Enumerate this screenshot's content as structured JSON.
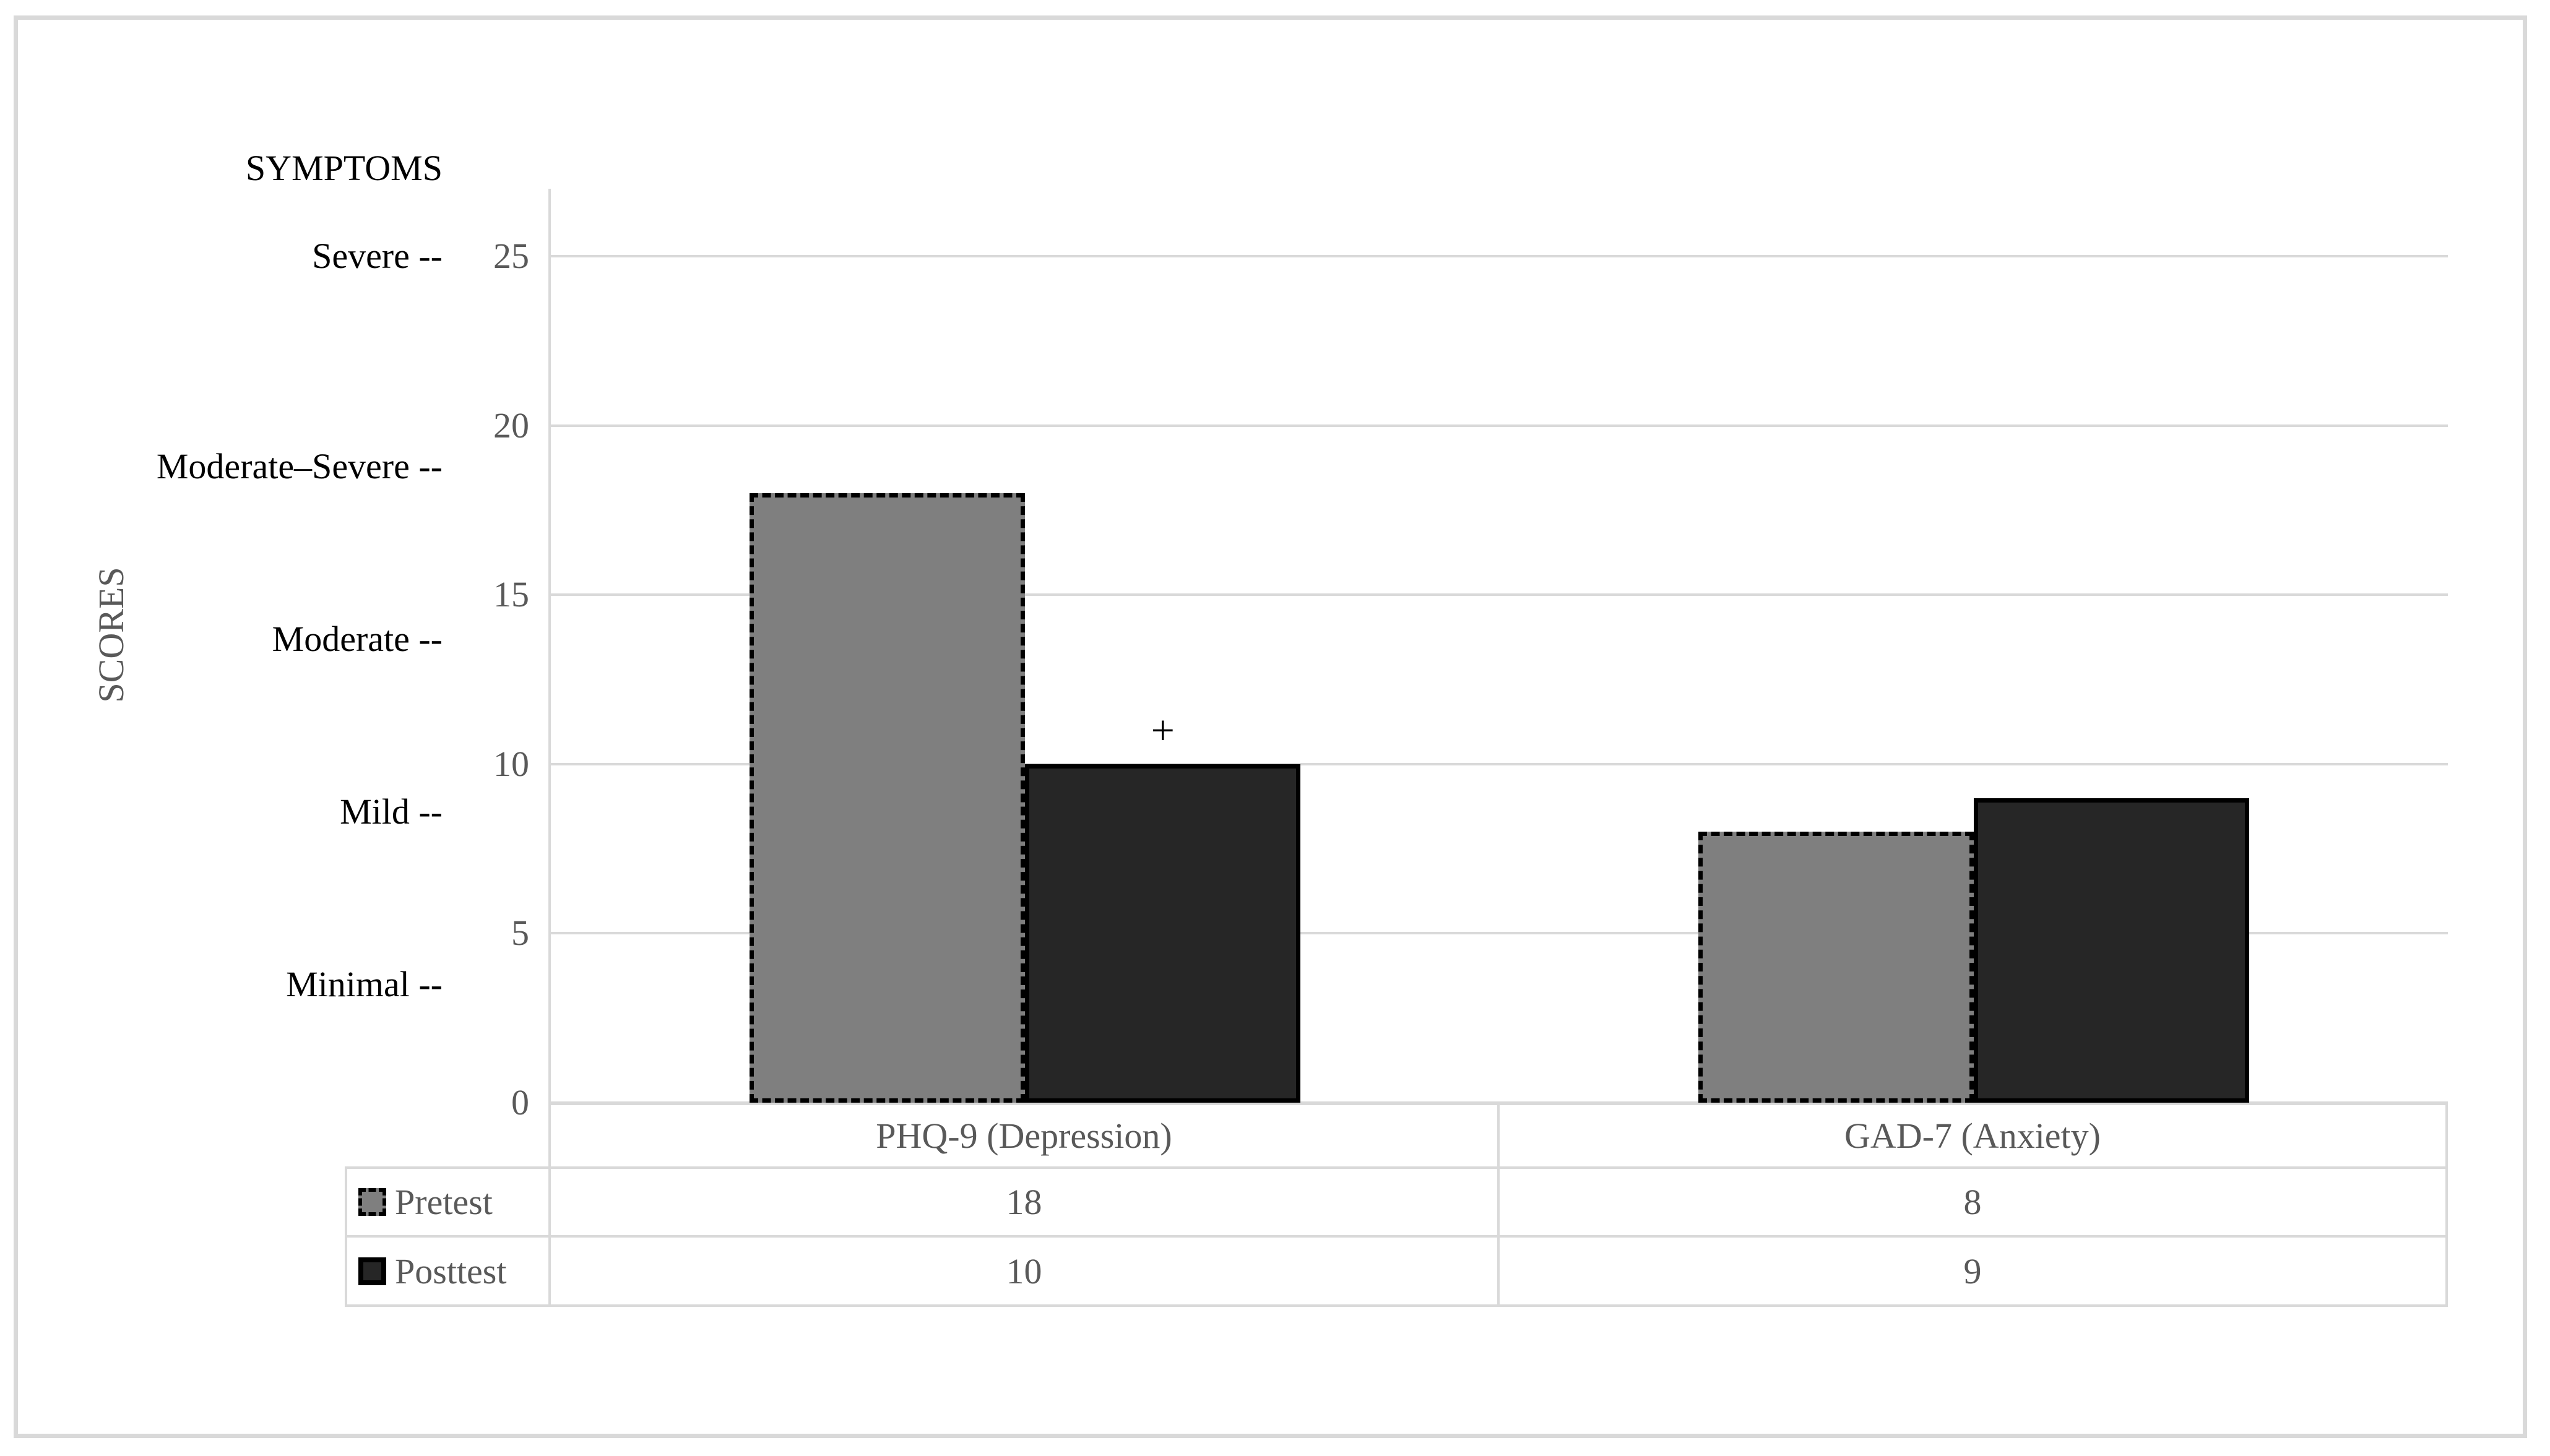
{
  "figure": {
    "symptom_axis_title": "SYMPTOMS",
    "score_axis_title": "SCORES"
  },
  "chart_data": {
    "type": "bar",
    "categories": [
      "PHQ-9 (Depression)",
      "GAD-7 (Anxiety)"
    ],
    "series": [
      {
        "name": "Pretest",
        "values": [
          18,
          8
        ],
        "fill": "#7f7f7f",
        "border_style": "dashed"
      },
      {
        "name": "Posttest",
        "values": [
          10,
          9
        ],
        "fill": "#262626",
        "border_style": "solid"
      }
    ],
    "title": "",
    "xlabel": "",
    "ylabel": "SCORES",
    "ylim": [
      0,
      27
    ],
    "yticks": [
      0,
      5,
      10,
      15,
      20,
      25
    ],
    "grid": "horizontal",
    "legend_position": "left-of-data-table",
    "symptom_labels": [
      {
        "label": "Severe --",
        "value": 25.0
      },
      {
        "label": "Moderate–Severe --",
        "value": 18.8
      },
      {
        "label": "Moderate --",
        "value": 13.7
      },
      {
        "label": "Mild --",
        "value": 8.6
      },
      {
        "label": "Minimal --",
        "value": 3.5
      }
    ],
    "annotations": [
      {
        "text": "+",
        "category_index": 0,
        "series_index": 1,
        "value": 11.0
      }
    ]
  },
  "colors": {
    "pretest_fill": "#7f7f7f",
    "posttest_fill": "#262626",
    "bar_border": "#000000",
    "gridline": "#d9d9d9",
    "table_border": "#d9d9d9",
    "frame_border": "#d9d9d9",
    "text_gray": "#595959",
    "text_black": "#000000"
  }
}
